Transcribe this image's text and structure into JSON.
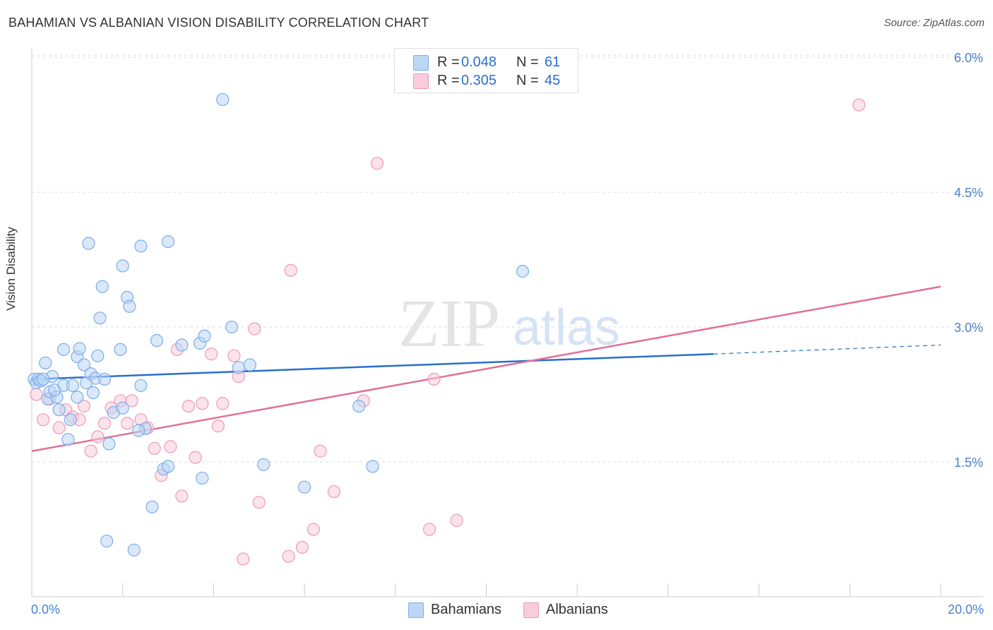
{
  "title": "BAHAMIAN VS ALBANIAN VISION DISABILITY CORRELATION CHART",
  "source": "Source: ZipAtlas.com",
  "watermark": {
    "zip": "ZIP",
    "atlas": "atlas"
  },
  "colors": {
    "blue": "#7aaee8",
    "blue_fill": "#bcd6f5",
    "blue_line": "#2a6fcc",
    "pink": "#ee9ab5",
    "pink_fill": "#f8ccdb",
    "pink_line": "#e07098",
    "tick_text": "#4a7fcf"
  },
  "legend": {
    "rows": [
      {
        "r_label": "R =",
        "r_value": "0.048",
        "n_label": "N =",
        "n_value": "61"
      },
      {
        "r_label": "R =",
        "r_value": "0.305",
        "n_label": "N =",
        "n_value": "45"
      }
    ]
  },
  "bottom_legend": {
    "bahamians": "Bahamians",
    "albanians": "Albanians"
  },
  "chart_data": {
    "type": "scatter",
    "title": "BAHAMIAN VS ALBANIAN VISION DISABILITY CORRELATION CHART",
    "ylabel": "Vision Disability",
    "xlabel": "",
    "xlim": [
      0,
      20
    ],
    "ylim": [
      0,
      6.15
    ],
    "x_tick_labels": [
      "0.0%",
      "20.0%"
    ],
    "y_ticks": [
      1.5,
      3.0,
      4.5,
      6.0
    ],
    "y_tick_labels": [
      "1.5%",
      "3.0%",
      "4.5%",
      "6.0%"
    ],
    "grid": "horizontal-dashed",
    "series": [
      {
        "name": "Bahamians",
        "r": 0.048,
        "n": 61,
        "trend": {
          "x0": 0,
          "y0": 2.42,
          "x1": 15.0,
          "y1": 2.7,
          "dashed_to_x": 20,
          "dashed_to_y": 2.8
        },
        "points": [
          [
            0.05,
            2.42
          ],
          [
            0.1,
            2.38
          ],
          [
            0.15,
            2.42
          ],
          [
            0.2,
            2.4
          ],
          [
            0.3,
            2.6
          ],
          [
            0.35,
            2.2
          ],
          [
            0.4,
            2.28
          ],
          [
            0.45,
            2.45
          ],
          [
            0.55,
            2.22
          ],
          [
            0.6,
            2.08
          ],
          [
            0.7,
            2.35
          ],
          [
            0.7,
            2.75
          ],
          [
            0.8,
            1.75
          ],
          [
            0.85,
            1.97
          ],
          [
            0.9,
            2.35
          ],
          [
            1.0,
            2.22
          ],
          [
            1.0,
            2.67
          ],
          [
            1.05,
            2.76
          ],
          [
            1.15,
            2.58
          ],
          [
            1.2,
            2.38
          ],
          [
            1.25,
            3.93
          ],
          [
            1.3,
            2.48
          ],
          [
            1.35,
            2.27
          ],
          [
            1.4,
            2.43
          ],
          [
            1.45,
            2.68
          ],
          [
            1.5,
            3.1
          ],
          [
            1.55,
            3.45
          ],
          [
            1.6,
            2.42
          ],
          [
            1.65,
            0.62
          ],
          [
            1.7,
            1.7
          ],
          [
            1.8,
            2.05
          ],
          [
            1.95,
            2.75
          ],
          [
            2.0,
            3.68
          ],
          [
            2.0,
            2.1
          ],
          [
            2.1,
            3.33
          ],
          [
            2.15,
            3.23
          ],
          [
            2.25,
            0.52
          ],
          [
            2.4,
            3.9
          ],
          [
            2.4,
            2.35
          ],
          [
            2.5,
            1.87
          ],
          [
            2.65,
            1.0
          ],
          [
            2.75,
            2.85
          ],
          [
            2.9,
            1.42
          ],
          [
            3.0,
            3.95
          ],
          [
            3.0,
            1.45
          ],
          [
            3.3,
            2.8
          ],
          [
            3.7,
            2.82
          ],
          [
            3.75,
            1.32
          ],
          [
            3.8,
            2.9
          ],
          [
            4.2,
            5.53
          ],
          [
            4.4,
            3.0
          ],
          [
            4.55,
            2.55
          ],
          [
            4.8,
            2.58
          ],
          [
            5.1,
            1.47
          ],
          [
            6.0,
            1.22
          ],
          [
            7.2,
            2.12
          ],
          [
            7.5,
            1.45
          ],
          [
            10.8,
            3.62
          ],
          [
            0.5,
            2.3
          ],
          [
            2.35,
            1.85
          ],
          [
            0.25,
            2.42
          ]
        ]
      },
      {
        "name": "Albanians",
        "r": 0.305,
        "n": 45,
        "trend": {
          "x0": 0,
          "y0": 1.62,
          "x1": 20,
          "y1": 3.45
        },
        "points": [
          [
            0.1,
            2.25
          ],
          [
            0.25,
            1.97
          ],
          [
            0.4,
            2.2
          ],
          [
            0.6,
            1.88
          ],
          [
            0.75,
            2.08
          ],
          [
            0.9,
            2.0
          ],
          [
            1.05,
            1.97
          ],
          [
            1.15,
            2.12
          ],
          [
            1.3,
            1.62
          ],
          [
            1.45,
            1.78
          ],
          [
            1.6,
            1.93
          ],
          [
            1.75,
            2.1
          ],
          [
            1.95,
            2.18
          ],
          [
            2.1,
            1.93
          ],
          [
            2.2,
            2.18
          ],
          [
            2.4,
            1.97
          ],
          [
            2.55,
            1.88
          ],
          [
            2.7,
            1.65
          ],
          [
            2.85,
            1.35
          ],
          [
            3.05,
            1.67
          ],
          [
            3.2,
            2.75
          ],
          [
            3.3,
            1.12
          ],
          [
            3.45,
            2.12
          ],
          [
            3.6,
            1.55
          ],
          [
            3.75,
            2.15
          ],
          [
            3.95,
            2.7
          ],
          [
            4.1,
            1.9
          ],
          [
            4.2,
            2.15
          ],
          [
            4.45,
            2.68
          ],
          [
            4.55,
            2.45
          ],
          [
            4.65,
            0.42
          ],
          [
            4.9,
            2.98
          ],
          [
            5.0,
            1.05
          ],
          [
            5.65,
            0.45
          ],
          [
            5.7,
            3.63
          ],
          [
            5.95,
            0.55
          ],
          [
            6.2,
            0.75
          ],
          [
            6.35,
            1.62
          ],
          [
            6.65,
            1.17
          ],
          [
            7.3,
            2.18
          ],
          [
            7.6,
            4.82
          ],
          [
            8.75,
            0.75
          ],
          [
            8.85,
            2.42
          ],
          [
            9.35,
            0.85
          ],
          [
            18.2,
            5.47
          ]
        ]
      }
    ]
  }
}
